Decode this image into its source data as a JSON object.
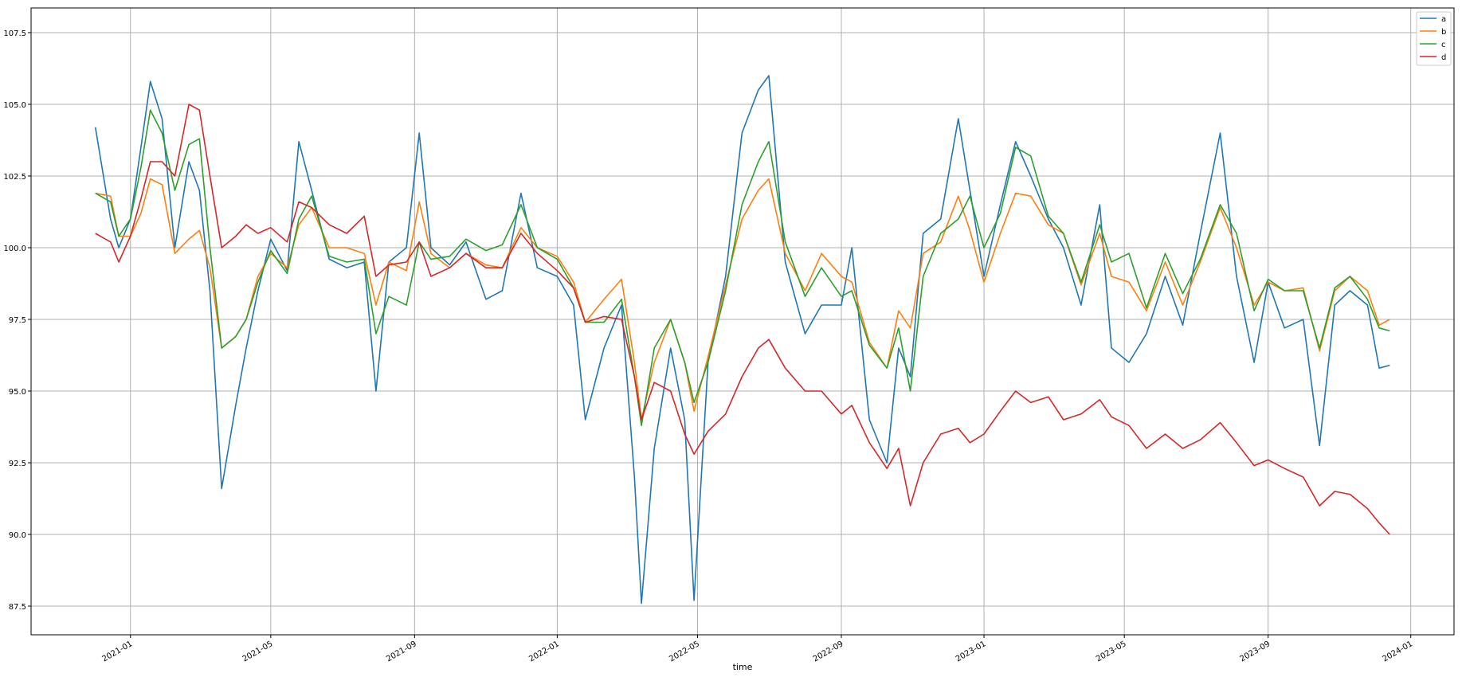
{
  "chart_data": {
    "type": "line",
    "title": "",
    "xlabel": "time",
    "ylabel": "",
    "xlim": [
      "2020-10-08",
      "2024-02-07"
    ],
    "ylim": [
      86.5,
      108.36
    ],
    "grid": true,
    "legend_position": "top-right",
    "x_ticks": [
      "2021-01",
      "2021-05",
      "2021-09",
      "2022-01",
      "2022-05",
      "2022-09",
      "2023-01",
      "2023-05",
      "2023-09",
      "2024-01"
    ],
    "y_ticks": [
      "87.5",
      "90.0",
      "92.5",
      "95.0",
      "97.5",
      "100.0",
      "102.5",
      "105.0",
      "107.5"
    ],
    "x": [
      "2020-12-02",
      "2020-12-15",
      "2020-12-22",
      "2021-01-01",
      "2021-01-10",
      "2021-01-18",
      "2021-01-28",
      "2021-02-08",
      "2021-02-20",
      "2021-03-01",
      "2021-03-10",
      "2021-03-20",
      "2021-04-01",
      "2021-04-10",
      "2021-04-20",
      "2021-05-01",
      "2021-05-15",
      "2021-05-25",
      "2021-06-05",
      "2021-06-20",
      "2021-07-05",
      "2021-07-20",
      "2021-07-30",
      "2021-08-10",
      "2021-08-25",
      "2021-09-05",
      "2021-09-15",
      "2021-10-01",
      "2021-10-15",
      "2021-11-01",
      "2021-11-15",
      "2021-12-01",
      "2021-12-15",
      "2022-01-01",
      "2022-01-15",
      "2022-01-25",
      "2022-02-10",
      "2022-02-25",
      "2022-03-08",
      "2022-03-14",
      "2022-03-25",
      "2022-04-08",
      "2022-04-20",
      "2022-04-28",
      "2022-05-10",
      "2022-05-25",
      "2022-06-08",
      "2022-06-22",
      "2022-07-01",
      "2022-07-15",
      "2022-08-01",
      "2022-08-15",
      "2022-09-01",
      "2022-09-10",
      "2022-09-25",
      "2022-10-10",
      "2022-10-20",
      "2022-10-30",
      "2022-11-10",
      "2022-11-25",
      "2022-12-10",
      "2022-12-20",
      "2023-01-01",
      "2023-01-15",
      "2023-01-28",
      "2023-02-10",
      "2023-02-25",
      "2023-03-10",
      "2023-03-25",
      "2023-04-10",
      "2023-04-20",
      "2023-05-05",
      "2023-05-20",
      "2023-06-05",
      "2023-06-20",
      "2023-07-05",
      "2023-07-22",
      "2023-08-05",
      "2023-08-20",
      "2023-09-01",
      "2023-09-15",
      "2023-10-01",
      "2023-10-15",
      "2023-10-28",
      "2023-11-10",
      "2023-11-25",
      "2023-12-05",
      "2023-12-14"
    ],
    "series": [
      {
        "name": "a",
        "color": "#1f77b4",
        "values": [
          104.2,
          101.0,
          100.0,
          101.0,
          103.5,
          105.8,
          104.5,
          100.0,
          103.0,
          102.0,
          98.5,
          91.6,
          94.5,
          96.5,
          98.5,
          100.3,
          99.2,
          103.7,
          102.0,
          99.6,
          99.3,
          99.5,
          95.0,
          99.5,
          100.0,
          104.0,
          100.0,
          99.4,
          100.2,
          98.2,
          98.5,
          101.9,
          99.3,
          99.0,
          98.0,
          94.0,
          96.5,
          98.0,
          92.0,
          87.6,
          93.0,
          96.5,
          94.0,
          87.7,
          96.0,
          99.0,
          104.0,
          105.5,
          106.0,
          99.5,
          97.0,
          98.0,
          98.0,
          100.0,
          94.0,
          92.5,
          96.5,
          95.5,
          100.5,
          101.0,
          104.5,
          102.0,
          99.0,
          101.5,
          103.7,
          102.5,
          101.0,
          100.0,
          98.0,
          101.5,
          96.5,
          96.0,
          97.0,
          99.0,
          97.3,
          100.5,
          104.0,
          99.0,
          96.0,
          98.8,
          97.2,
          97.5,
          93.1,
          98.0,
          98.5,
          98.0,
          95.8,
          95.9
        ]
      },
      {
        "name": "b",
        "color": "#ff7f0e",
        "values": [
          101.9,
          101.8,
          100.4,
          100.4,
          101.2,
          102.4,
          102.2,
          99.8,
          100.3,
          100.6,
          99.3,
          96.5,
          96.9,
          97.5,
          99.0,
          99.8,
          99.3,
          100.8,
          101.4,
          100.0,
          100.0,
          99.8,
          98.0,
          99.5,
          99.2,
          101.6,
          99.8,
          99.3,
          99.8,
          99.4,
          99.3,
          100.7,
          100.0,
          99.7,
          98.8,
          97.4,
          98.2,
          98.9,
          96.0,
          94.0,
          96.0,
          97.5,
          96.0,
          94.3,
          96.2,
          98.7,
          101.0,
          102.0,
          102.4,
          99.8,
          98.5,
          99.8,
          99.0,
          98.8,
          96.7,
          95.8,
          97.8,
          97.2,
          99.8,
          100.2,
          101.8,
          100.6,
          98.8,
          100.5,
          101.9,
          101.8,
          100.8,
          100.5,
          98.7,
          100.5,
          99.0,
          98.8,
          97.8,
          99.5,
          98.0,
          99.5,
          101.4,
          100.0,
          98.0,
          98.8,
          98.5,
          98.6,
          96.4,
          98.5,
          99.0,
          98.5,
          97.3,
          97.5
        ]
      },
      {
        "name": "c",
        "color": "#2ca02c",
        "values": [
          101.9,
          101.6,
          100.4,
          101.0,
          102.8,
          104.8,
          104.0,
          102.0,
          103.6,
          103.8,
          100.0,
          96.5,
          96.9,
          97.5,
          98.8,
          99.9,
          99.1,
          101.0,
          101.8,
          99.7,
          99.5,
          99.6,
          97.0,
          98.3,
          98.0,
          100.2,
          99.6,
          99.7,
          100.3,
          99.9,
          100.1,
          101.5,
          100.0,
          99.6,
          98.6,
          97.4,
          97.4,
          98.2,
          95.5,
          93.8,
          96.5,
          97.5,
          96.0,
          94.6,
          96.0,
          98.5,
          101.5,
          103.0,
          103.7,
          100.2,
          98.3,
          99.3,
          98.3,
          98.5,
          96.6,
          95.8,
          97.2,
          95.0,
          99.0,
          100.5,
          101.0,
          101.8,
          100.0,
          101.2,
          103.5,
          103.2,
          101.1,
          100.5,
          98.8,
          100.8,
          99.5,
          99.8,
          97.9,
          99.8,
          98.4,
          99.6,
          101.5,
          100.5,
          97.8,
          98.9,
          98.5,
          98.5,
          96.5,
          98.6,
          99.0,
          98.2,
          97.2,
          97.1
        ]
      },
      {
        "name": "d",
        "color": "#d62728",
        "values": [
          100.5,
          100.2,
          99.5,
          100.4,
          101.7,
          103.0,
          103.0,
          102.5,
          105.0,
          104.8,
          102.5,
          100.0,
          100.4,
          100.8,
          100.5,
          100.7,
          100.2,
          101.6,
          101.4,
          100.8,
          100.5,
          101.1,
          99.0,
          99.4,
          99.5,
          100.2,
          99.0,
          99.3,
          99.8,
          99.3,
          99.3,
          100.5,
          99.8,
          99.2,
          98.6,
          97.4,
          97.6,
          97.5,
          95.5,
          94.0,
          95.3,
          95.0,
          93.5,
          92.8,
          93.6,
          94.2,
          95.5,
          96.5,
          96.8,
          95.8,
          95.0,
          95.0,
          94.2,
          94.5,
          93.2,
          92.3,
          93.0,
          91.0,
          92.5,
          93.5,
          93.7,
          93.2,
          93.5,
          94.3,
          95.0,
          94.6,
          94.8,
          94.0,
          94.2,
          94.7,
          94.1,
          93.8,
          93.0,
          93.5,
          93.0,
          93.3,
          93.9,
          93.2,
          92.4,
          92.6,
          92.3,
          92.0,
          91.0,
          91.5,
          91.4,
          90.9,
          90.4,
          90.0
        ]
      }
    ]
  }
}
